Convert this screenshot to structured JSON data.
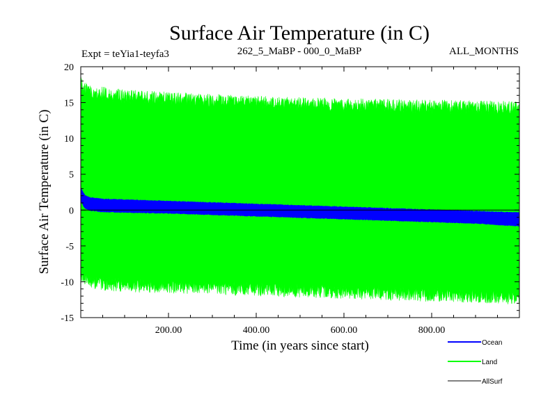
{
  "chart_data": {
    "type": "line",
    "title": "Surface Air Temperature (in C)",
    "subtitle_left": "Expt = teYia1-teyfa3",
    "subtitle_center": "262_5_MaBP - 000_0_MaBP",
    "subtitle_right": "ALL_MONTHS",
    "xlabel": "Time (in years since start)",
    "ylabel": "Surface Air Temperature (in C)",
    "xlim": [
      0,
      1000
    ],
    "ylim": [
      -15,
      20
    ],
    "xticks": [
      200,
      400,
      600,
      800
    ],
    "xtick_labels": [
      "200.00",
      "400.00",
      "600.00",
      "800.00"
    ],
    "yticks": [
      -15,
      -10,
      -5,
      0,
      5,
      10,
      15,
      20
    ],
    "ytick_labels": [
      "-15",
      "-10",
      "-5",
      "0",
      "5",
      "10",
      "15",
      "20"
    ],
    "legend_position": "bottom-right",
    "series": [
      {
        "name": "Land",
        "color": "#00ff00",
        "band": {
          "x": [
            0,
            5,
            20,
            50,
            100,
            200,
            300,
            400,
            500,
            600,
            700,
            800,
            900,
            1000
          ],
          "upper": [
            19.0,
            18.0,
            17.5,
            17.2,
            16.8,
            16.5,
            16.2,
            16.0,
            15.8,
            15.6,
            15.5,
            15.4,
            15.3,
            15.2
          ],
          "lower": [
            -9.5,
            -10.5,
            -11.0,
            -11.2,
            -11.5,
            -11.6,
            -11.8,
            -12.0,
            -12.2,
            -12.4,
            -12.6,
            -12.8,
            -13.0,
            -13.2
          ]
        }
      },
      {
        "name": "Ocean",
        "color": "#0000ff",
        "band": {
          "x": [
            0,
            3,
            10,
            20,
            50,
            100,
            200,
            300,
            400,
            500,
            600,
            700,
            800,
            900,
            1000
          ],
          "upper": [
            3.2,
            2.8,
            2.1,
            1.8,
            1.6,
            1.5,
            1.3,
            1.1,
            0.9,
            0.7,
            0.5,
            0.3,
            0.1,
            -0.1,
            -0.3
          ],
          "lower": [
            1.2,
            0.8,
            0.2,
            -0.1,
            -0.3,
            -0.4,
            -0.5,
            -0.7,
            -0.9,
            -1.1,
            -1.3,
            -1.5,
            -1.7,
            -1.9,
            -2.3
          ]
        }
      },
      {
        "name": "AllSurf",
        "color": "#000000",
        "x": [
          0,
          1000
        ],
        "values": [
          0,
          0
        ]
      }
    ]
  }
}
